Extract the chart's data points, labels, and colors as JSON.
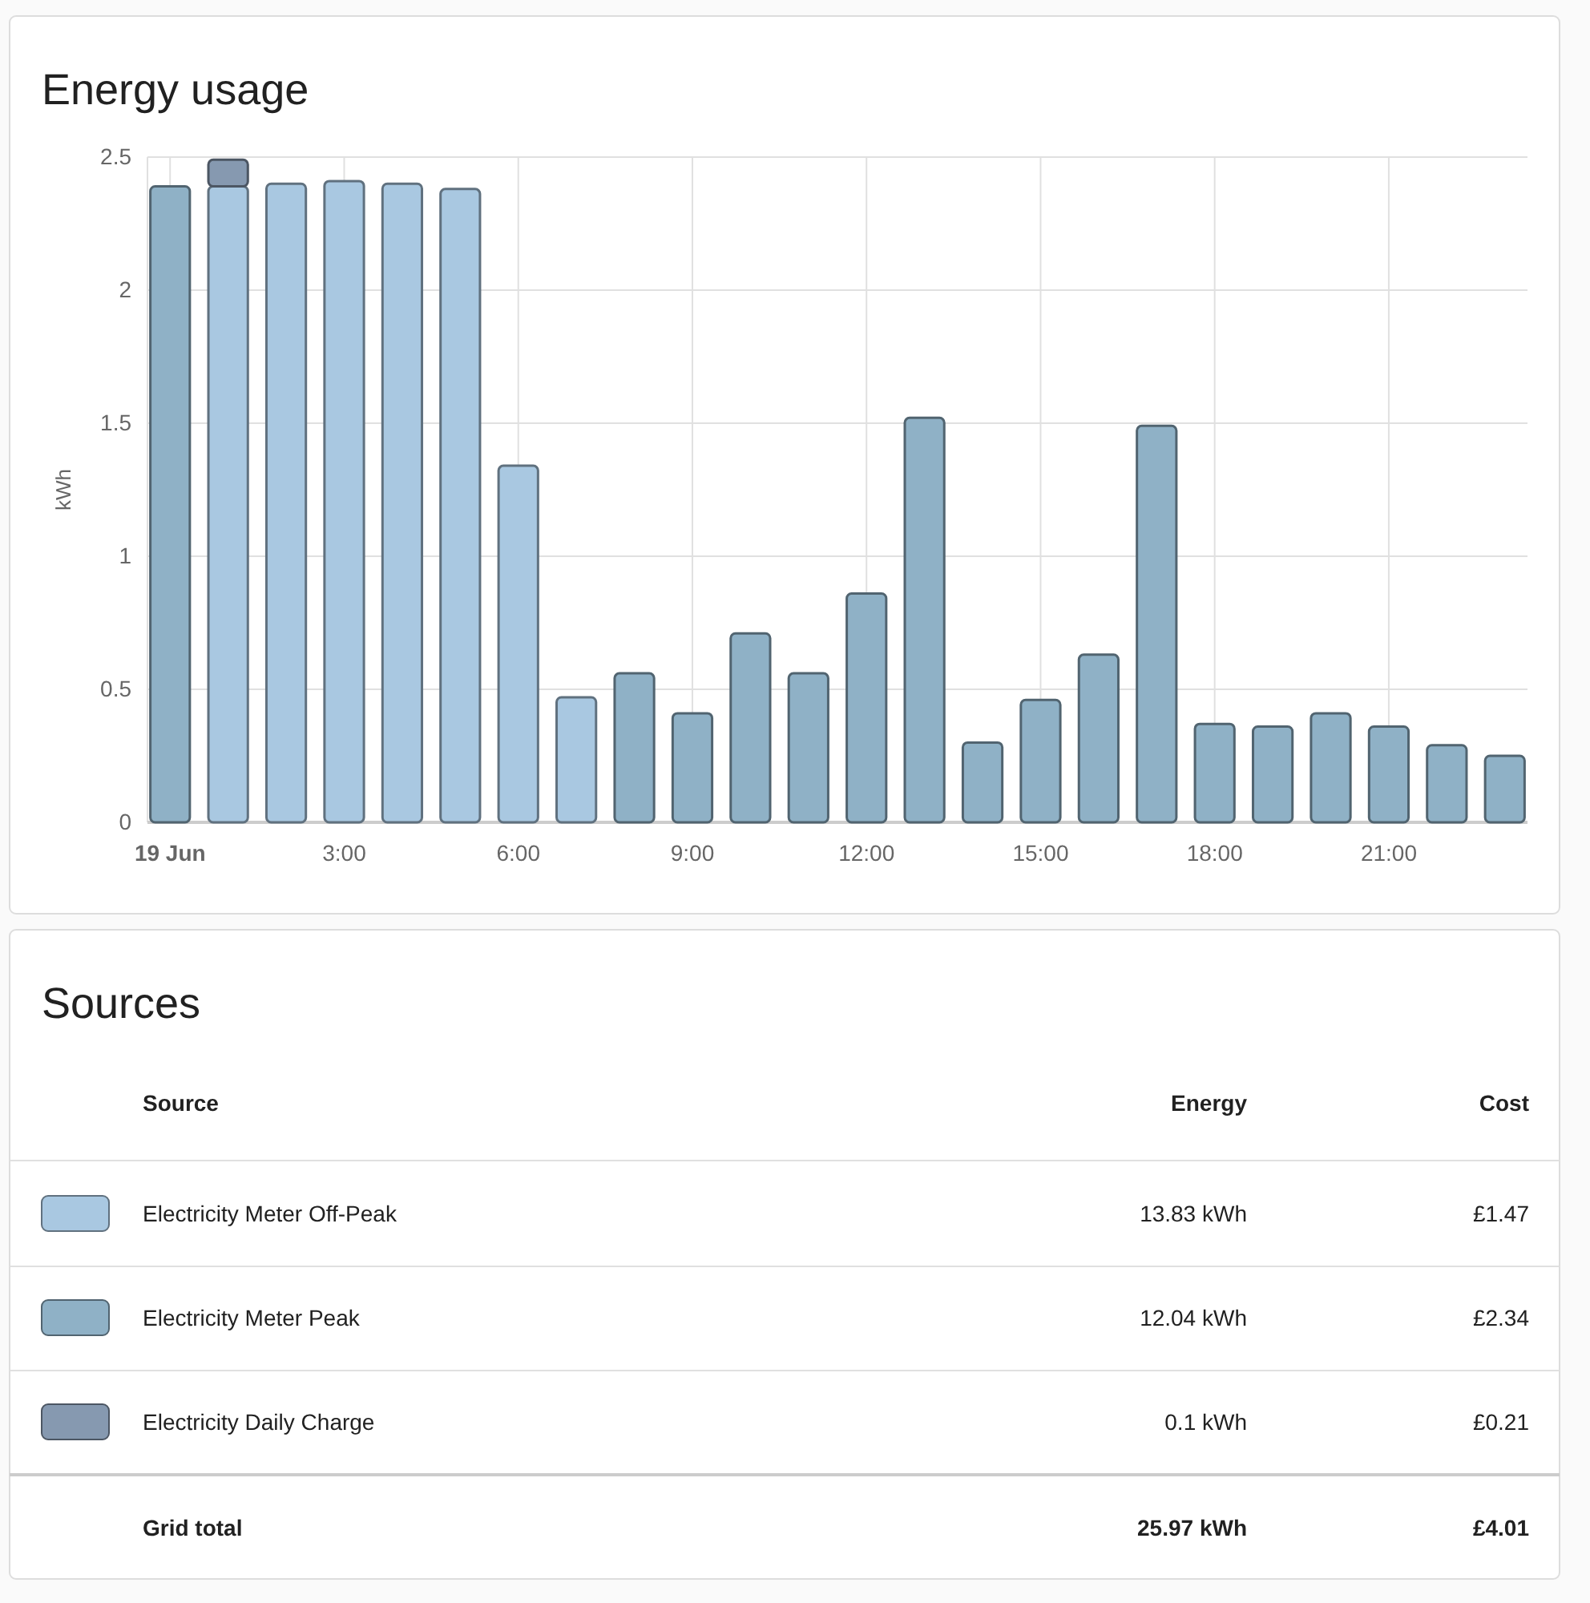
{
  "chart_data": {
    "type": "bar",
    "title": "Energy usage",
    "ylabel": "kWh",
    "stacked": true,
    "grid": true,
    "legend": "bottom",
    "categories": [
      "19 Jun",
      null,
      null,
      "3:00",
      null,
      null,
      "6:00",
      null,
      null,
      "9:00",
      null,
      null,
      "12:00",
      null,
      null,
      "15:00",
      null,
      null,
      "18:00",
      null,
      null,
      "21:00",
      null,
      null
    ],
    "ylim": [
      0,
      2.5
    ],
    "yticks": [
      0,
      0.5,
      1,
      1.5,
      2,
      2.5
    ],
    "series": [
      {
        "name": "Electricity Meter Off-Peak",
        "color": "#a9c8e1",
        "values": [
          null,
          2.39,
          2.4,
          2.41,
          2.4,
          2.38,
          1.34,
          0.47,
          null,
          null,
          null,
          null,
          null,
          null,
          null,
          null,
          null,
          null,
          null,
          null,
          null,
          null,
          null,
          null
        ]
      },
      {
        "name": "Electricity Meter Peak",
        "color": "#8fb1c6",
        "values": [
          2.39,
          null,
          null,
          null,
          null,
          null,
          null,
          null,
          0.56,
          0.41,
          0.71,
          0.56,
          0.86,
          1.52,
          0.3,
          0.46,
          0.63,
          1.49,
          0.37,
          0.36,
          0.41,
          0.36,
          0.29,
          0.25
        ]
      },
      {
        "name": "Electricity Daily Charge",
        "color": "#8699b0",
        "values": [
          null,
          0.1,
          null,
          null,
          null,
          null,
          null,
          null,
          null,
          null,
          null,
          null,
          null,
          null,
          null,
          null,
          null,
          null,
          null,
          null,
          null,
          null,
          null,
          null
        ]
      }
    ],
    "annotations": [
      "Sources",
      "Source",
      "Energy",
      "Cost",
      "13.83 kWh",
      "£1.47",
      "12.04 kWh",
      "£2.34",
      "0.1 kWh",
      "£0.21",
      "Grid total",
      "25.97 kWh",
      "£4.01"
    ]
  }
}
